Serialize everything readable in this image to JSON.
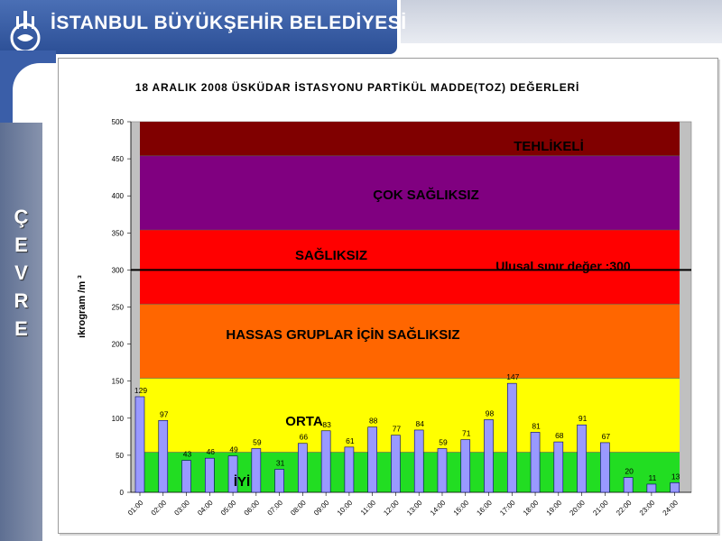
{
  "header": {
    "org_title": "İSTANBUL BÜYÜKŞEHİR BELEDİYESİ",
    "logo_icon": "ibb-logo-icon"
  },
  "sidebar": {
    "letters": [
      "Ç",
      "E",
      "V",
      "R",
      "E"
    ]
  },
  "colors": {
    "header_blue": "#2c4f96",
    "band_iyi": "#22dd22",
    "band_orta": "#ffff00",
    "band_hassas": "#ff6600",
    "band_sagliksiz": "#ff0000",
    "band_cok": "#800080",
    "band_tehlikeli": "#800000",
    "bar_fill": "#9999ff"
  },
  "chart_data": {
    "type": "bar",
    "title": "18 ARALIK 2008 ÜSKÜDAR İSTASYONU PARTİKÜL MADDE(TOZ) DEĞERLERİ",
    "ylabel": "ıkrogram /m ³",
    "xlabel": "",
    "ylim": [
      0,
      500
    ],
    "yticks": [
      0,
      50,
      100,
      150,
      200,
      250,
      300,
      350,
      400,
      450,
      500
    ],
    "categories": [
      "01:00",
      "02:00",
      "03:00",
      "04:00",
      "05:00",
      "06:00",
      "07:00",
      "08:00",
      "09:00",
      "10:00",
      "11:00",
      "12:00",
      "13:00",
      "14:00",
      "15:00",
      "16:00",
      "17:00",
      "18:00",
      "19:00",
      "20:00",
      "21:00",
      "22:00",
      "23:00",
      "24:00"
    ],
    "category_labels": [
      "01:00",
      "02:00",
      "03:00",
      "04:00",
      "05:00",
      "06:00",
      "07:00",
      "08:00",
      "09:00",
      "10:00",
      "11:00",
      "12:00",
      "13:00",
      "14:00",
      "15:00",
      "16:00",
      "17:00",
      "18:00",
      "19:00",
      "20:00",
      "21:00",
      "22:00",
      "23:00",
      "24:00"
    ],
    "values": [
      129,
      97,
      43,
      46,
      49,
      59,
      31,
      66,
      83,
      61,
      88,
      77,
      84,
      59,
      71,
      98,
      147,
      81,
      68,
      91,
      67,
      20,
      11,
      13
    ],
    "value_labels": [
      "129",
      "97",
      "43",
      "46",
      "49",
      "59",
      "31",
      "66",
      "83",
      "61",
      "88",
      "77",
      "84",
      "59",
      "71",
      "98",
      "147",
      "81",
      "68",
      "91",
      "67",
      "20",
      "11",
      "13"
    ],
    "bands": [
      {
        "label": "İYİ",
        "from": 0,
        "to": 54,
        "color": "#22dd22"
      },
      {
        "label": "ORTA",
        "from": 54,
        "to": 154,
        "color": "#ffff00"
      },
      {
        "label": "HASSAS GRUPLAR İÇİN SAĞLIKSIZ",
        "from": 154,
        "to": 254,
        "color": "#ff6600"
      },
      {
        "label": "SAĞLIKSIZ",
        "from": 254,
        "to": 354,
        "color": "#ff0000"
      },
      {
        "label": "ÇOK SAĞLIKSIZ",
        "from": 354,
        "to": 454,
        "color": "#800080"
      },
      {
        "label": "TEHLİKELİ",
        "from": 454,
        "to": 500,
        "color": "#800000"
      }
    ],
    "reference_line": {
      "value": 300,
      "label": "Ulusal  sınır değer :300"
    },
    "grid": false,
    "legend": "none"
  }
}
